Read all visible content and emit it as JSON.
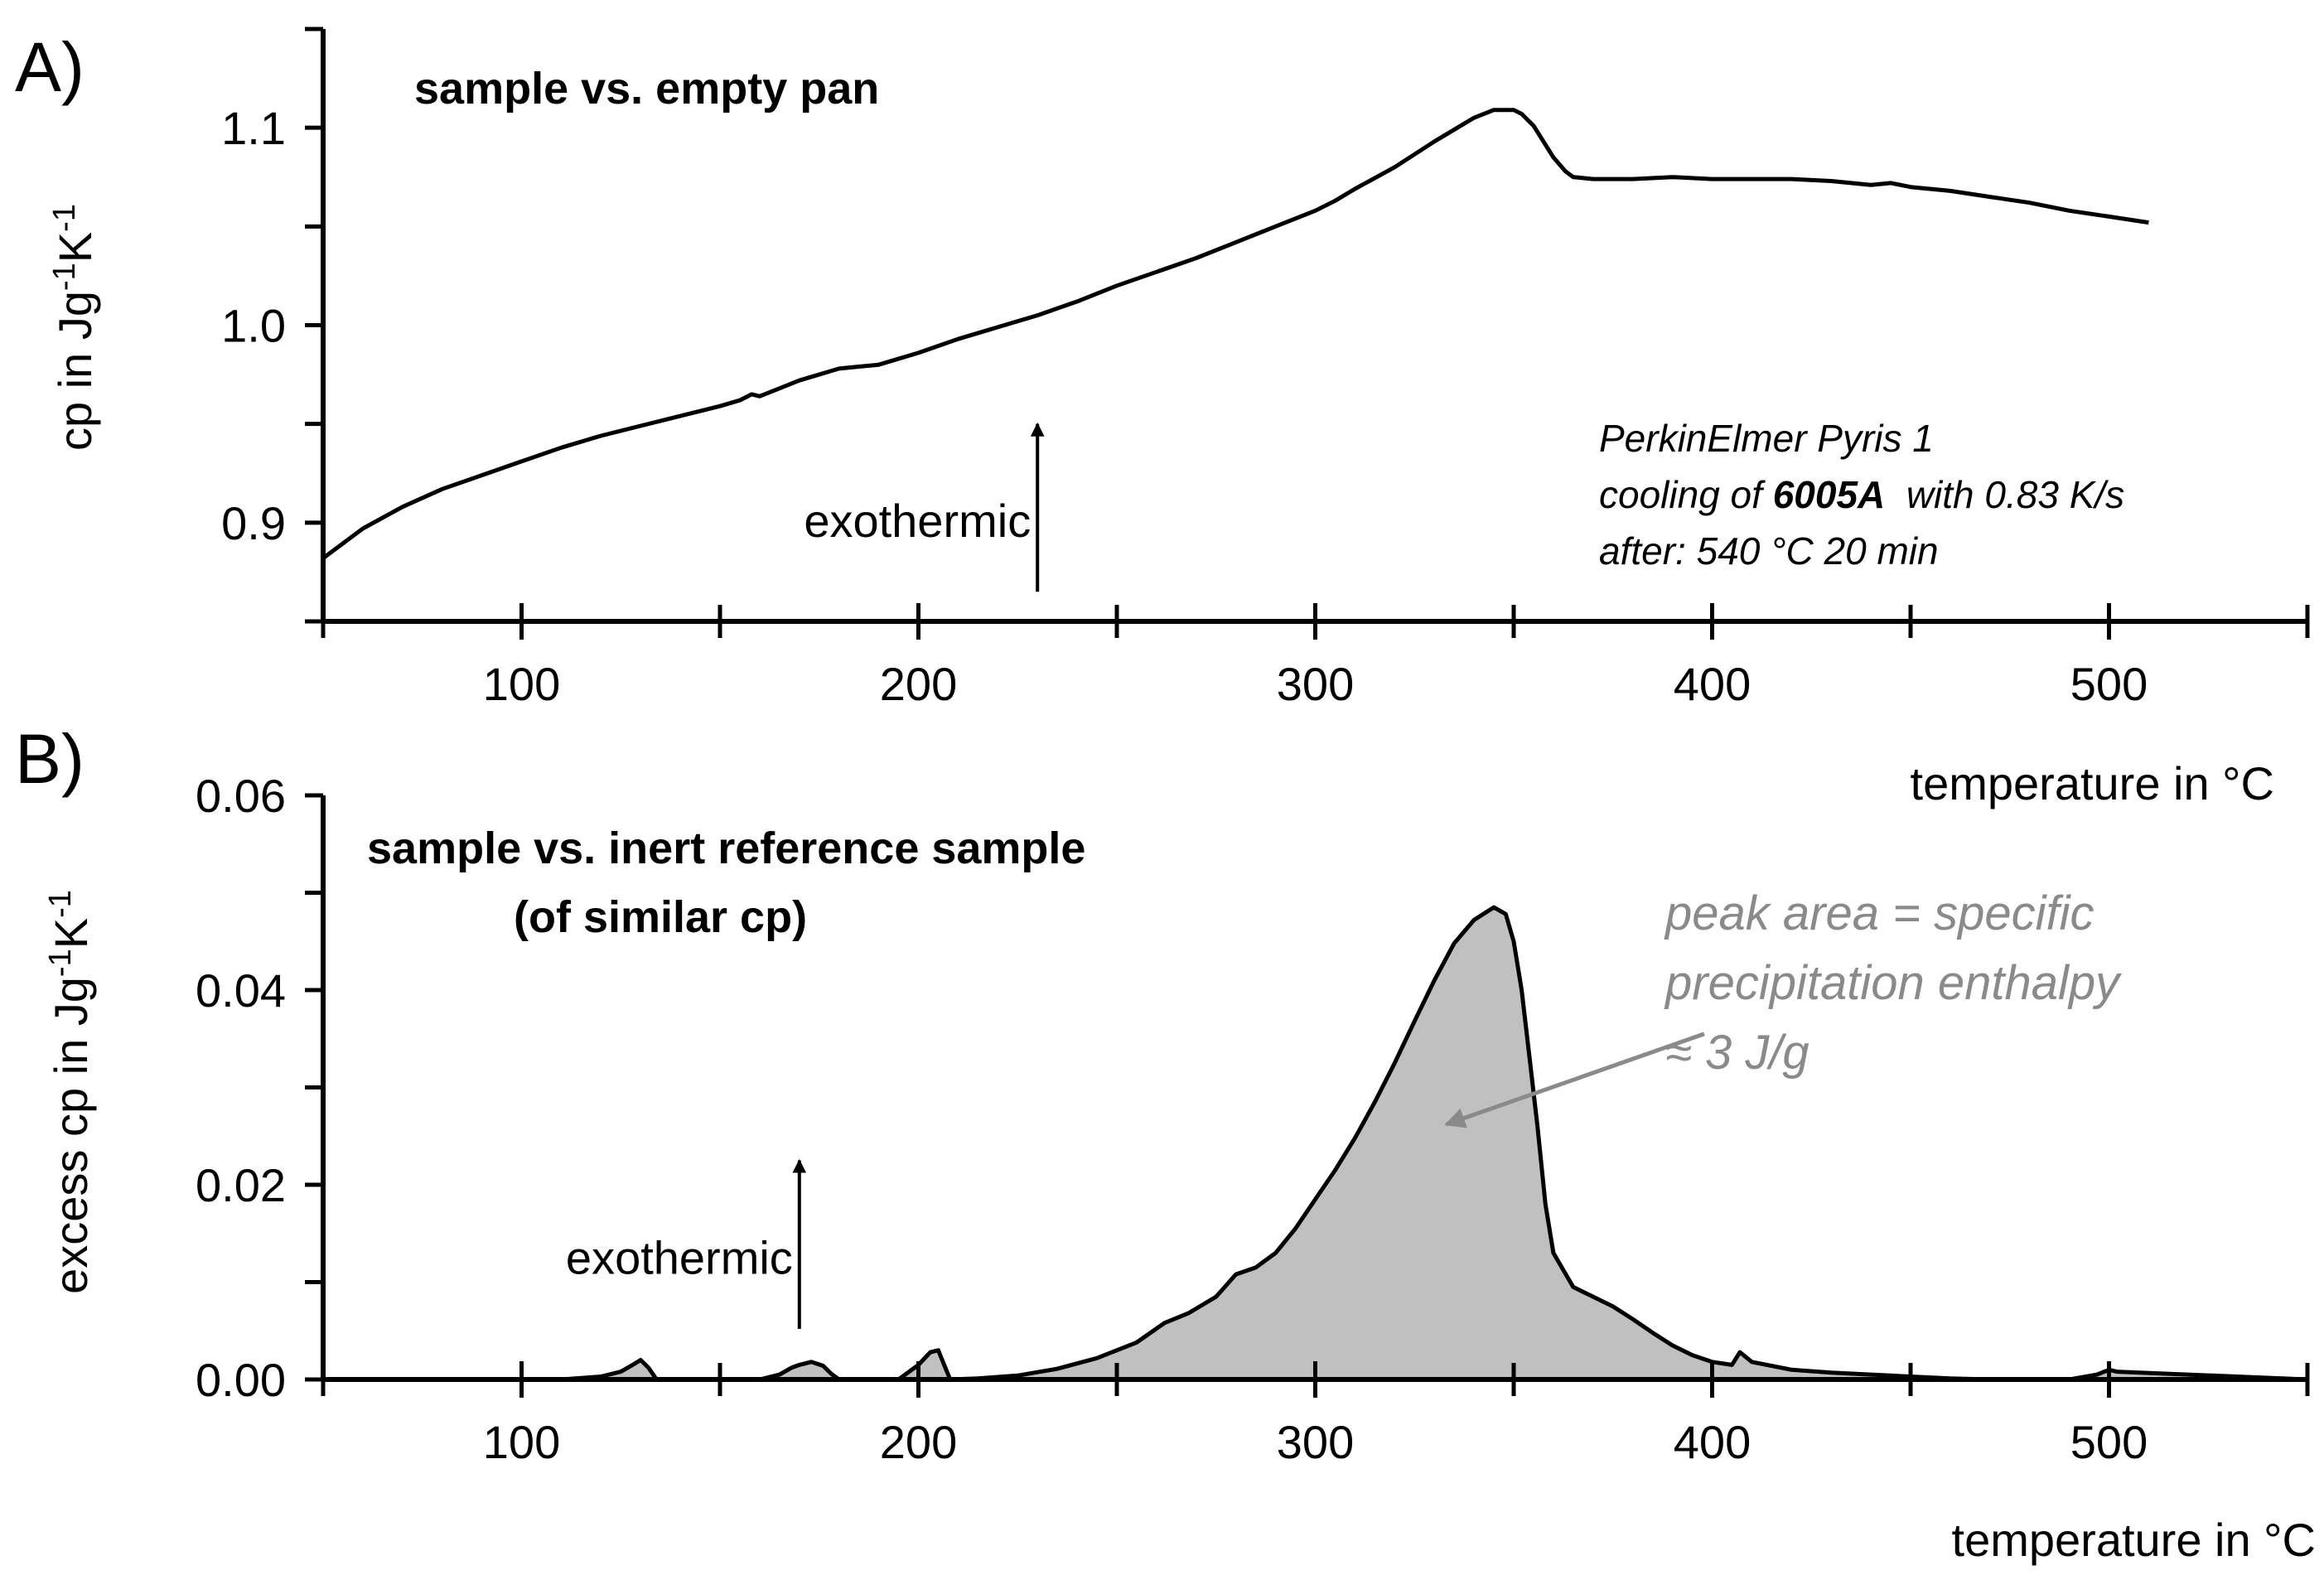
{
  "chart_data": [
    {
      "type": "line",
      "panel_label": "A)",
      "title": "sample vs. empty pan",
      "xlabel": "temperature in °C",
      "ylabel": {
        "base": "cp in Jg",
        "sup1": "-1",
        "mid": "K",
        "sup2": "-1"
      },
      "xlim": [
        50,
        550
      ],
      "ylim": [
        0.85,
        1.15
      ],
      "xticks": [
        100,
        200,
        300,
        400,
        500
      ],
      "xtick_labels": [
        "100",
        "200",
        "300",
        "400",
        "500"
      ],
      "yticks": [
        0.9,
        1.0,
        1.1
      ],
      "ytick_labels": [
        "0.9",
        "1.0",
        "1.1"
      ],
      "annotations": {
        "arrow_text": "exothermic",
        "arrow_x": 230,
        "arrow_y_from": 0.865,
        "arrow_y_to": 0.95,
        "instrument_lines": {
          "line1": "PerkinElmer Pyris 1",
          "line2_pre": "cooling of ",
          "line2_bold": "6005A",
          "line2_post": "  with 0.83 K/s",
          "line3": "after: 540 °C 20 min"
        }
      },
      "series": [
        {
          "name": "cp",
          "x": [
            50,
            60,
            70,
            80,
            90,
            100,
            110,
            120,
            130,
            140,
            150,
            155,
            158,
            160,
            170,
            180,
            185,
            190,
            200,
            210,
            220,
            230,
            240,
            250,
            260,
            270,
            280,
            290,
            300,
            305,
            310,
            320,
            330,
            340,
            345,
            350,
            352,
            355,
            360,
            363,
            365,
            370,
            380,
            390,
            400,
            410,
            420,
            430,
            440,
            445,
            450,
            460,
            470,
            480,
            490,
            500,
            510
          ],
          "y": [
            0.882,
            0.897,
            0.908,
            0.917,
            0.924,
            0.931,
            0.938,
            0.944,
            0.949,
            0.954,
            0.959,
            0.962,
            0.965,
            0.964,
            0.972,
            0.978,
            0.979,
            0.98,
            0.986,
            0.993,
            0.999,
            1.005,
            1.012,
            1.02,
            1.027,
            1.034,
            1.042,
            1.05,
            1.058,
            1.063,
            1.069,
            1.08,
            1.093,
            1.105,
            1.109,
            1.109,
            1.107,
            1.101,
            1.085,
            1.078,
            1.075,
            1.074,
            1.074,
            1.075,
            1.074,
            1.074,
            1.074,
            1.073,
            1.071,
            1.072,
            1.07,
            1.068,
            1.065,
            1.062,
            1.058,
            1.055,
            1.052
          ]
        }
      ]
    },
    {
      "type": "area",
      "panel_label": "B)",
      "title_line1": "sample vs. inert reference sample",
      "title_line2": "(of similar cp)",
      "xlabel": "temperature in °C",
      "ylabel": {
        "base": "excess cp in Jg",
        "sup1": "-1",
        "mid": "K",
        "sup2": "-1"
      },
      "xlim": [
        50,
        550
      ],
      "ylim": [
        0,
        0.06
      ],
      "xticks": [
        100,
        200,
        300,
        400,
        500
      ],
      "xtick_labels": [
        "100",
        "200",
        "300",
        "400",
        "500"
      ],
      "yticks": [
        0,
        0.02,
        0.04,
        0.06
      ],
      "ytick_labels": [
        "0.00",
        "0.02",
        "0.04",
        "0.06"
      ],
      "annotations": {
        "arrow_text": "exothermic",
        "arrow_x": 170,
        "arrow_y_from": 0.0052,
        "arrow_y_to": 0.0225,
        "peak_text": {
          "line1": "peak area = specific",
          "line2": "precipitation enthalpy",
          "line3": "≈ 3 J/g"
        },
        "peak_arrow_from": [
          398,
          0.0355
        ],
        "peak_arrow_to": [
          333,
          0.0262
        ]
      },
      "fill_color": "#c0c0c0",
      "annotation_color": "#8a8a8a",
      "series": [
        {
          "name": "excess cp",
          "x": [
            50,
            110,
            120,
            125,
            128,
            130,
            132,
            134,
            160,
            165,
            168,
            170,
            173,
            176,
            178,
            180,
            195,
            200,
            203,
            205,
            206,
            208,
            215,
            225,
            235,
            245,
            255,
            262,
            268,
            275,
            280,
            285,
            290,
            295,
            300,
            305,
            310,
            315,
            320,
            325,
            330,
            335,
            340,
            345,
            348,
            350,
            352,
            354,
            356,
            358,
            360,
            365,
            370,
            375,
            380,
            385,
            390,
            395,
            400,
            405,
            407,
            410,
            420,
            430,
            440,
            450,
            460,
            470,
            480,
            490,
            497,
            500,
            502,
            550
          ],
          "y": [
            0,
            0,
            0.0003,
            0.0008,
            0.0015,
            0.002,
            0.0012,
            0,
            0,
            0.0005,
            0.0012,
            0.0015,
            0.0018,
            0.0014,
            0.0006,
            0,
            0,
            0.0015,
            0.0028,
            0.003,
            0.002,
            0,
            0.0001,
            0.0004,
            0.0011,
            0.0022,
            0.0038,
            0.0058,
            0.0068,
            0.0085,
            0.0108,
            0.0115,
            0.013,
            0.0155,
            0.0185,
            0.0215,
            0.0248,
            0.0285,
            0.0325,
            0.0368,
            0.041,
            0.0448,
            0.0472,
            0.0485,
            0.0478,
            0.045,
            0.04,
            0.033,
            0.026,
            0.018,
            0.013,
            0.0095,
            0.0085,
            0.0075,
            0.0062,
            0.0048,
            0.0035,
            0.0025,
            0.0018,
            0.0015,
            0.0028,
            0.0018,
            0.001,
            0.0007,
            0.0005,
            0.0003,
            0.0001,
            0,
            0,
            0,
            0.0005,
            0.001,
            0.0008,
            0
          ]
        }
      ]
    }
  ]
}
